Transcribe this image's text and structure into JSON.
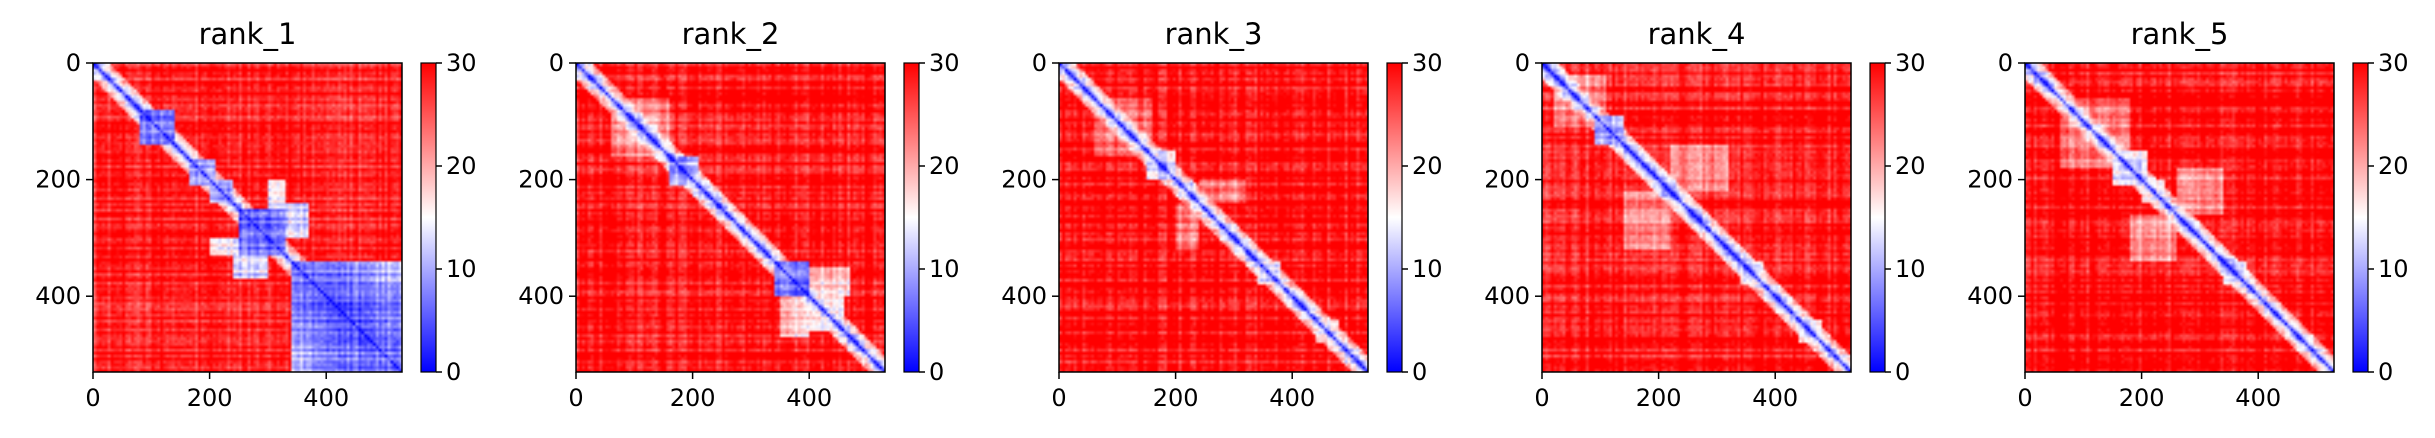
{
  "figure": {
    "background": "#ffffff"
  },
  "colormap": {
    "name": "bwr",
    "low": "#0000ff",
    "mid": "#ffffff",
    "high": "#ff0000",
    "vmin": 0,
    "vmax": 30,
    "ticks": [
      0,
      10,
      20,
      30
    ],
    "tick_labels": [
      "0",
      "10",
      "20",
      "30"
    ]
  },
  "chart_data": [
    {
      "type": "heatmap",
      "title": "rank_1",
      "xlabel": "",
      "ylabel": "",
      "n": 530,
      "xlim": [
        0,
        530
      ],
      "ylim": [
        530,
        0
      ],
      "xticks": [
        0,
        200,
        400
      ],
      "yticks": [
        0,
        200,
        400
      ],
      "xtick_labels": [
        "0",
        "200",
        "400"
      ],
      "ytick_labels": [
        "0",
        "200",
        "400"
      ],
      "colorbar": {
        "min": 0,
        "max": 30,
        "ticks": [
          "0",
          "10",
          "20",
          "30"
        ]
      },
      "diagonal_value": 0,
      "background_value": 28,
      "contact_blocks": [
        {
          "start": 80,
          "end": 140,
          "value": 6
        },
        {
          "start": 165,
          "end": 210,
          "value": 8
        },
        {
          "start": 200,
          "end": 240,
          "value": 8
        },
        {
          "start": 250,
          "end": 330,
          "value": 5
        },
        {
          "start": 340,
          "end": 530,
          "value": 6
        }
      ],
      "off_diagonal_contacts": [
        {
          "rows": [
            240,
            300
          ],
          "cols": [
            300,
            370
          ],
          "value": 12
        },
        {
          "rows": [
            300,
            370
          ],
          "cols": [
            240,
            300
          ],
          "value": 12
        },
        {
          "rows": [
            200,
            240
          ],
          "cols": [
            300,
            330
          ],
          "value": 14
        },
        {
          "rows": [
            300,
            330
          ],
          "cols": [
            200,
            240
          ],
          "value": 14
        },
        {
          "rows": [
            380,
            470
          ],
          "cols": [
            440,
            530
          ],
          "value": 8
        },
        {
          "rows": [
            440,
            530
          ],
          "cols": [
            380,
            470
          ],
          "value": 8
        }
      ]
    },
    {
      "type": "heatmap",
      "title": "rank_2",
      "xlabel": "",
      "ylabel": "",
      "n": 530,
      "xlim": [
        0,
        530
      ],
      "ylim": [
        530,
        0
      ],
      "xticks": [
        0,
        200,
        400
      ],
      "yticks": [
        0,
        200,
        400
      ],
      "xtick_labels": [
        "0",
        "200",
        "400"
      ],
      "ytick_labels": [
        "0",
        "200",
        "400"
      ],
      "colorbar": {
        "min": 0,
        "max": 30,
        "ticks": [
          "0",
          "10",
          "20",
          "30"
        ]
      },
      "diagonal_value": 0,
      "background_value": 29,
      "contact_blocks": [
        {
          "start": 160,
          "end": 210,
          "value": 10
        },
        {
          "start": 200,
          "end": 230,
          "value": 12
        },
        {
          "start": 340,
          "end": 400,
          "value": 7
        },
        {
          "start": 400,
          "end": 460,
          "value": 14
        }
      ],
      "off_diagonal_contacts": [
        {
          "rows": [
            60,
            160
          ],
          "cols": [
            60,
            160
          ],
          "value": 22
        },
        {
          "rows": [
            350,
            400
          ],
          "cols": [
            400,
            470
          ],
          "value": 18
        },
        {
          "rows": [
            400,
            470
          ],
          "cols": [
            350,
            400
          ],
          "value": 18
        }
      ]
    },
    {
      "type": "heatmap",
      "title": "rank_3",
      "xlabel": "",
      "ylabel": "",
      "n": 530,
      "xlim": [
        0,
        530
      ],
      "ylim": [
        530,
        0
      ],
      "xticks": [
        0,
        200,
        400
      ],
      "yticks": [
        0,
        200,
        400
      ],
      "xtick_labels": [
        "0",
        "200",
        "400"
      ],
      "ytick_labels": [
        "0",
        "200",
        "400"
      ],
      "colorbar": {
        "min": 0,
        "max": 30,
        "ticks": [
          "0",
          "10",
          "20",
          "30"
        ]
      },
      "diagonal_value": 0,
      "background_value": 29,
      "contact_blocks": [
        {
          "start": 150,
          "end": 200,
          "value": 12
        },
        {
          "start": 200,
          "end": 230,
          "value": 14
        },
        {
          "start": 340,
          "end": 380,
          "value": 12
        },
        {
          "start": 440,
          "end": 480,
          "value": 14
        }
      ],
      "off_diagonal_contacts": [
        {
          "rows": [
            60,
            160
          ],
          "cols": [
            60,
            160
          ],
          "value": 23
        },
        {
          "rows": [
            200,
            240
          ],
          "cols": [
            240,
            320
          ],
          "value": 22
        },
        {
          "rows": [
            240,
            320
          ],
          "cols": [
            200,
            240
          ],
          "value": 22
        }
      ]
    },
    {
      "type": "heatmap",
      "title": "rank_4",
      "xlabel": "",
      "ylabel": "",
      "n": 530,
      "xlim": [
        0,
        530
      ],
      "ylim": [
        530,
        0
      ],
      "xticks": [
        0,
        200,
        400
      ],
      "yticks": [
        0,
        200,
        400
      ],
      "xtick_labels": [
        "0",
        "200",
        "400"
      ],
      "ytick_labels": [
        "0",
        "200",
        "400"
      ],
      "colorbar": {
        "min": 0,
        "max": 30,
        "ticks": [
          "0",
          "10",
          "20",
          "30"
        ]
      },
      "diagonal_value": 0,
      "background_value": 29,
      "contact_blocks": [
        {
          "start": 90,
          "end": 140,
          "value": 8
        },
        {
          "start": 200,
          "end": 230,
          "value": 13
        },
        {
          "start": 340,
          "end": 380,
          "value": 13
        },
        {
          "start": 440,
          "end": 480,
          "value": 14
        }
      ],
      "off_diagonal_contacts": [
        {
          "rows": [
            20,
            110
          ],
          "cols": [
            20,
            110
          ],
          "value": 22
        },
        {
          "rows": [
            140,
            220
          ],
          "cols": [
            220,
            320
          ],
          "value": 23
        },
        {
          "rows": [
            220,
            320
          ],
          "cols": [
            140,
            220
          ],
          "value": 23
        }
      ]
    },
    {
      "type": "heatmap",
      "title": "rank_5",
      "xlabel": "",
      "ylabel": "",
      "n": 530,
      "xlim": [
        0,
        530
      ],
      "ylim": [
        530,
        0
      ],
      "xticks": [
        0,
        200,
        400
      ],
      "yticks": [
        0,
        200,
        400
      ],
      "xtick_labels": [
        "0",
        "200",
        "400"
      ],
      "ytick_labels": [
        "0",
        "200",
        "400"
      ],
      "colorbar": {
        "min": 0,
        "max": 30,
        "ticks": [
          "0",
          "10",
          "20",
          "30"
        ]
      },
      "diagonal_value": 0,
      "background_value": 29,
      "contact_blocks": [
        {
          "start": 150,
          "end": 210,
          "value": 12
        },
        {
          "start": 200,
          "end": 240,
          "value": 13
        },
        {
          "start": 340,
          "end": 380,
          "value": 14
        }
      ],
      "off_diagonal_contacts": [
        {
          "rows": [
            60,
            180
          ],
          "cols": [
            60,
            180
          ],
          "value": 22
        },
        {
          "rows": [
            180,
            260
          ],
          "cols": [
            260,
            340
          ],
          "value": 21
        },
        {
          "rows": [
            260,
            340
          ],
          "cols": [
            180,
            260
          ],
          "value": 21
        }
      ]
    }
  ]
}
